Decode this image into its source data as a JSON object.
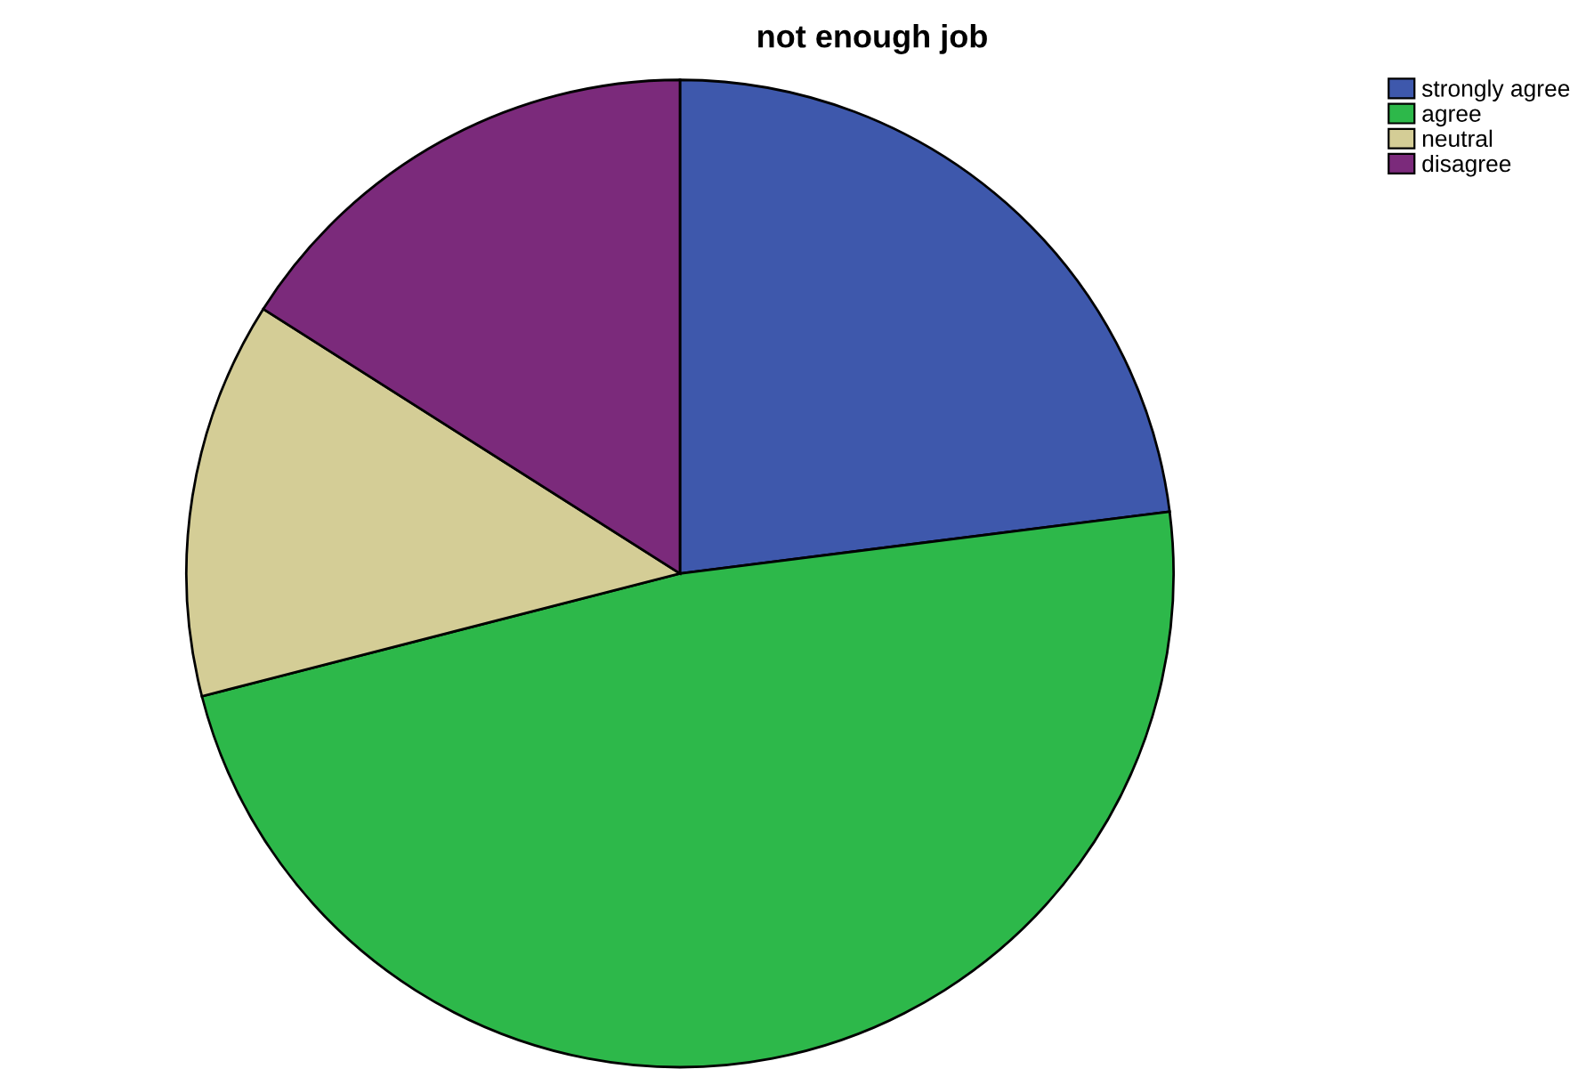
{
  "chart_data": {
    "type": "pie",
    "title": "not enough job",
    "categories": [
      "strongly agree",
      "agree",
      "neutral",
      "disagree"
    ],
    "values": [
      23,
      48,
      13,
      16
    ],
    "colors": [
      "#3e58ac",
      "#2db84a",
      "#d4cd96",
      "#7b2a7b"
    ],
    "legend": "top right"
  }
}
